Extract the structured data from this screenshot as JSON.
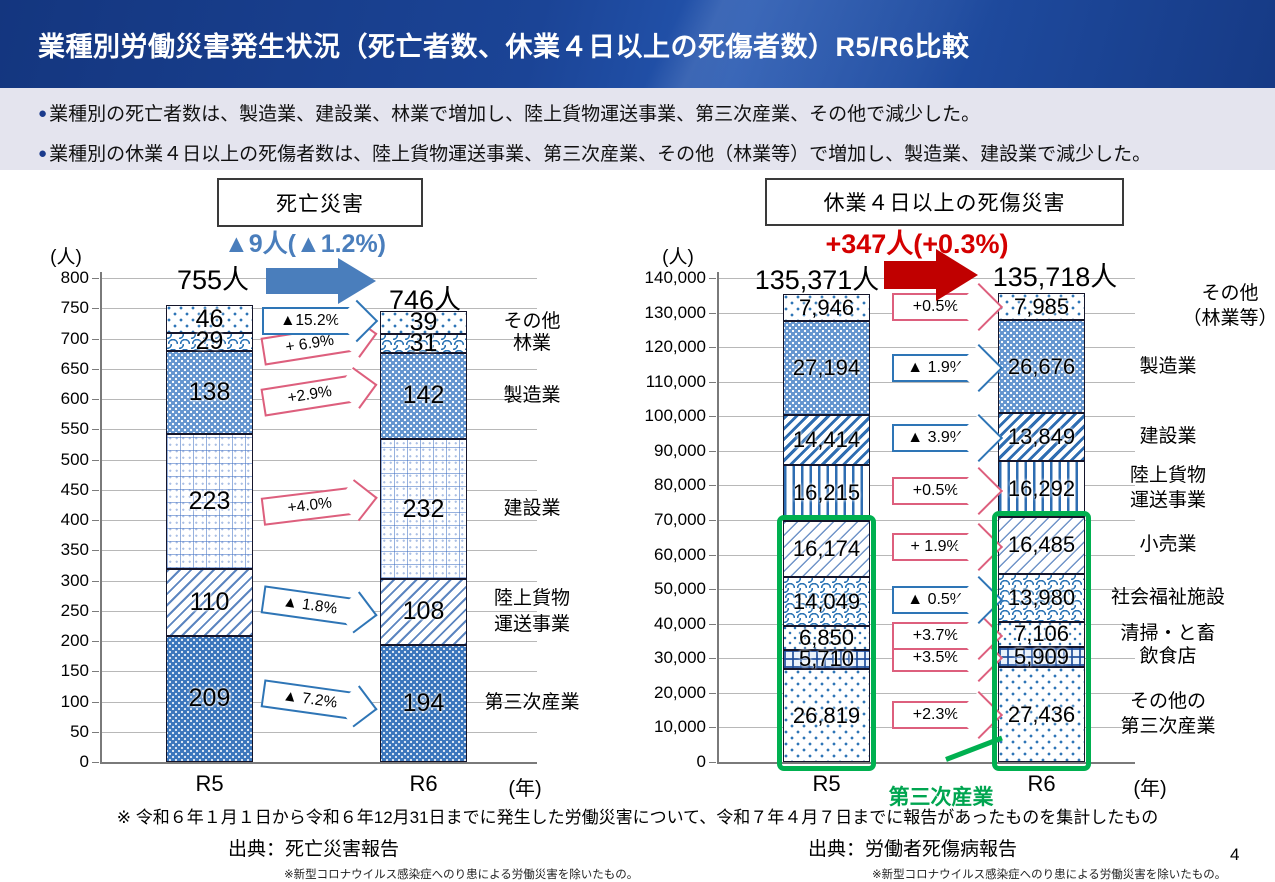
{
  "page": {
    "number": "4"
  },
  "header": {
    "title": "業種別労働災害発生状況（死亡者数、休業４日以上の死傷者数）R5/R6比較"
  },
  "bullets": [
    "業種別の死亡者数は、製造業、建設業、林業で増加し、陸上貨物運送事業、第三次産業、その他で減少した。",
    "業種別の休業４日以上の死傷者数は、陸上貨物運送事業、第三次産業、その他（林業等）で増加し、製造業、建設業で減少した。"
  ],
  "notes": {
    "main": "※ 令和６年１月１日から令和６年12月31日までに発生した労働災害について、令和７年４月７日までに報告があったものを集計したもの",
    "source_left": "出典：死亡災害報告",
    "source_right": "出典：労働者死傷病報告",
    "covid_left": "※新型コロナウイルス感染症へのり患による労働災害を除いたもの。",
    "covid_right": "※新型コロナウイルス感染症へのり患による労働災害を除いたもの。"
  },
  "colors": {
    "accent_blue": "#4a7ebc",
    "accent_red": "#c00000",
    "change_red": "#d40000",
    "arrow_pink": "#dd5f7d",
    "arrow_blue": "#2e75b6",
    "green": "#00b050",
    "header_bg": "#1b4496"
  },
  "chart_data": [
    {
      "id": "fatal",
      "type": "bar",
      "stacked": true,
      "title": "死亡災害",
      "unit": "(人)",
      "change_label": "▲9人(▲1.2%)",
      "totals": [
        755,
        746
      ],
      "totals_label": [
        "755人",
        "746人"
      ],
      "categories": [
        "R5",
        "R6"
      ],
      "x_axis_suffix": "(年)",
      "ylim": [
        0,
        800
      ],
      "ytick_step": 50,
      "grid": true,
      "series_order": "bottom-to-top",
      "series": [
        {
          "name": "第三次産業",
          "values": [
            209,
            194
          ],
          "change": "▲ 7.2%",
          "direction": "down",
          "pattern": "dots-dense-dark"
        },
        {
          "name": "陸上貨物\n運送事業",
          "values": [
            110,
            108
          ],
          "change": "▲ 1.8%",
          "direction": "down",
          "pattern": "hatch-light"
        },
        {
          "name": "建設業",
          "values": [
            223,
            232
          ],
          "change": "+4.0%",
          "direction": "up",
          "pattern": "grid-fine"
        },
        {
          "name": "製造業",
          "values": [
            138,
            142
          ],
          "change": "+2.9%",
          "direction": "up",
          "pattern": "dots-dense"
        },
        {
          "name": "林業",
          "values": [
            29,
            31
          ],
          "change": "+ 6.9%",
          "direction": "up",
          "pattern": "waves"
        },
        {
          "name": "その他",
          "values": [
            46,
            39
          ],
          "change": "▲15.2%",
          "direction": "down",
          "pattern": "dots-sparse"
        }
      ]
    },
    {
      "id": "injury",
      "type": "bar",
      "stacked": true,
      "title": "休業４日以上の死傷災害",
      "unit": "(人)",
      "change_label": "+347人(+0.3%)",
      "totals": [
        135371,
        135718
      ],
      "totals_label": [
        "135,371人",
        "135,718人"
      ],
      "categories": [
        "R5",
        "R6"
      ],
      "x_axis_suffix": "(年)",
      "ylim": [
        0,
        140000
      ],
      "ytick_step": 10000,
      "grid": true,
      "series_order": "bottom-to-top",
      "series": [
        {
          "name": "その他の\n第三次産業",
          "values": [
            26819,
            27436
          ],
          "change": "+2.3%",
          "direction": "up",
          "pattern": "dots-sparse"
        },
        {
          "name": "飲食店",
          "values": [
            5710,
            5909
          ],
          "change": "+3.5%",
          "direction": "up",
          "pattern": "plaid"
        },
        {
          "name": "清掃・と畜",
          "values": [
            6850,
            7106
          ],
          "change": "+3.7%",
          "direction": "up",
          "pattern": "dots-tiny"
        },
        {
          "name": "社会福祉施設",
          "values": [
            14049,
            13980
          ],
          "change": "▲ 0.5%",
          "direction": "down",
          "pattern": "waves"
        },
        {
          "name": "小売業",
          "values": [
            16174,
            16485
          ],
          "change": "+ 1.9%",
          "direction": "up",
          "pattern": "hatch-thin"
        },
        {
          "name": "陸上貨物\n運送事業",
          "values": [
            16215,
            16292
          ],
          "change": "+0.5%",
          "direction": "up",
          "pattern": "stripes-vertical"
        },
        {
          "name": "建設業",
          "values": [
            14414,
            13849
          ],
          "change": "▲ 3.9%",
          "direction": "down",
          "pattern": "hatch-dense"
        },
        {
          "name": "製造業",
          "values": [
            27194,
            26676
          ],
          "change": "▲ 1.9%",
          "direction": "down",
          "pattern": "dots-dense"
        },
        {
          "name": "その他\n（林業等）",
          "values": [
            7946,
            7985
          ],
          "change": "+0.5%",
          "direction": "up",
          "pattern": "dots-sparse"
        }
      ],
      "group_annotation": {
        "label": "第三次産業",
        "series_span": [
          0,
          4
        ]
      }
    }
  ]
}
